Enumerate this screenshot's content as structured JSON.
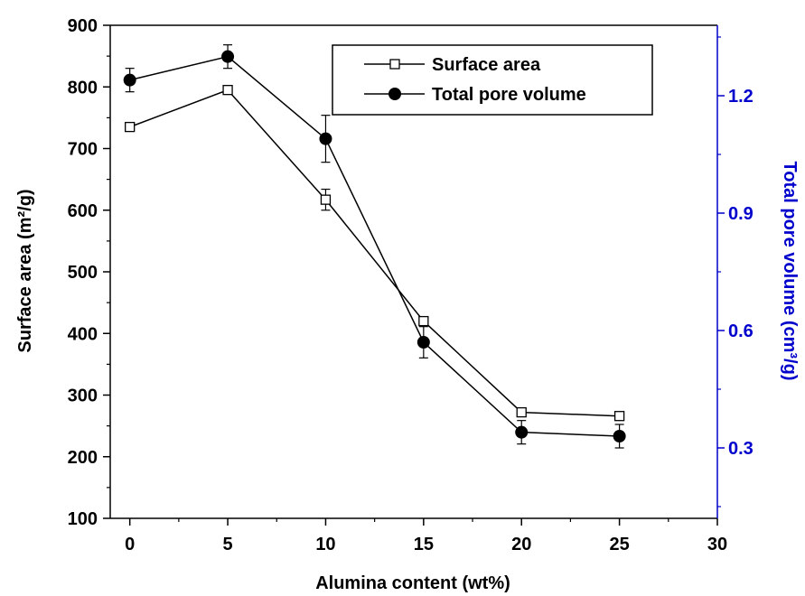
{
  "chart_data": {
    "type": "line",
    "x": [
      0,
      5,
      10,
      15,
      20,
      25
    ],
    "xlabel": "Alumina content (wt%)",
    "ylabel_left": "Surface area (m²/g)",
    "ylabel_right": "Total pore volume (cm³/g)",
    "xlim": [
      -1,
      30
    ],
    "ylim_left": [
      100,
      900
    ],
    "ylim_right": [
      0.12,
      1.38
    ],
    "x_ticks": [
      "0",
      "5",
      "10",
      "15",
      "20",
      "25",
      "30"
    ],
    "y_left_ticks": [
      "100",
      "200",
      "300",
      "400",
      "500",
      "600",
      "700",
      "800",
      "900"
    ],
    "y_right_ticks": [
      "0.3",
      "0.6",
      "0.9",
      "1.2"
    ],
    "legend_position": "top-right",
    "right_axis_color": "#0000cc",
    "series": [
      {
        "name": "Surface area",
        "axis": "left",
        "marker": "open-square",
        "values": [
          735,
          795,
          617,
          420,
          272,
          266
        ],
        "errors": [
          0,
          0,
          17,
          0,
          0,
          0
        ]
      },
      {
        "name": "Total pore volume",
        "axis": "right",
        "marker": "filled-circle",
        "values": [
          1.24,
          1.3,
          1.09,
          0.57,
          0.34,
          0.33
        ],
        "errors": [
          0.03,
          0.03,
          0.06,
          0.04,
          0.03,
          0.03
        ]
      }
    ]
  }
}
